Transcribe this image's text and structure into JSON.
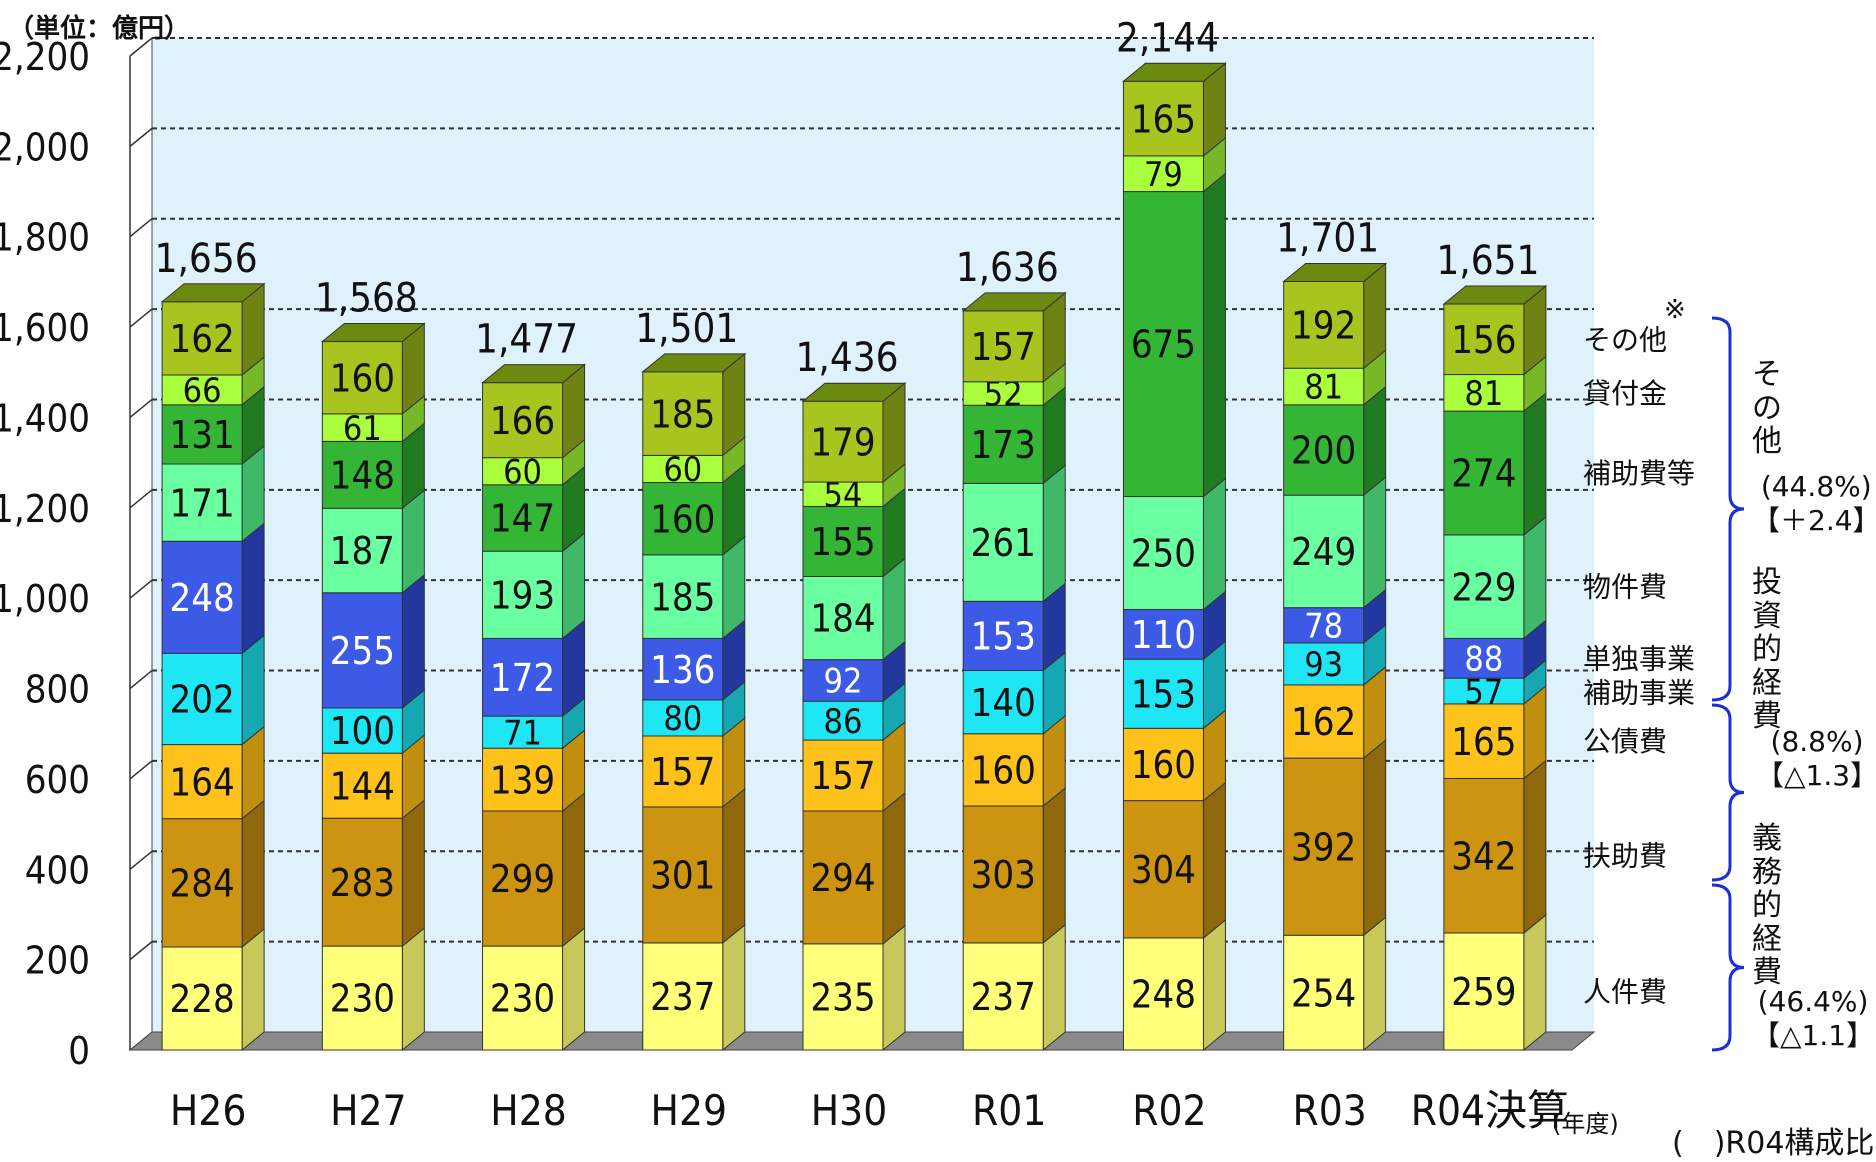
{
  "chart_data": {
    "type": "bar",
    "stacked": true,
    "unit_label": "（単位：億円）",
    "xlabel": "(年度)",
    "ylabel": "",
    "ylim": [
      0,
      2200
    ],
    "yticks": [
      "0",
      "200",
      "400",
      "600",
      "800",
      "1,000",
      "1,200",
      "1,400",
      "1,600",
      "1,800",
      "2,000",
      "2,200"
    ],
    "grid": true,
    "categories": [
      "H26",
      "H27",
      "H28",
      "H29",
      "H30",
      "R01",
      "R02",
      "R03",
      "R04決算"
    ],
    "totals": [
      "1,656",
      "1,568",
      "1,477",
      "1,501",
      "1,436",
      "1,636",
      "2,144",
      "1,701",
      "1,651"
    ],
    "series": [
      {
        "name": "人件費",
        "color": "#ffff7a",
        "side": "#c8c85a",
        "values": [
          228,
          230,
          230,
          237,
          235,
          237,
          248,
          254,
          259
        ]
      },
      {
        "name": "扶助費",
        "color": "#cc9410",
        "side": "#8f680b",
        "values": [
          284,
          283,
          299,
          301,
          294,
          303,
          304,
          392,
          342
        ]
      },
      {
        "name": "公債費",
        "color": "#ffc21a",
        "side": "#c08f10",
        "values": [
          164,
          144,
          139,
          157,
          157,
          160,
          160,
          162,
          165
        ]
      },
      {
        "name": "補助事業",
        "color": "#1fe6f5",
        "side": "#15a8b3",
        "values": [
          202,
          100,
          71,
          80,
          86,
          140,
          153,
          93,
          57
        ]
      },
      {
        "name": "単独事業",
        "color": "#3c5ae6",
        "side": "#22389e",
        "values": [
          248,
          255,
          172,
          136,
          92,
          153,
          110,
          78,
          88
        ]
      },
      {
        "name": "物件費",
        "color": "#6affa0",
        "side": "#40b86a",
        "values": [
          171,
          187,
          193,
          185,
          184,
          261,
          250,
          249,
          229
        ]
      },
      {
        "name": "補助費等",
        "color": "#35b535",
        "side": "#207a20",
        "values": [
          131,
          148,
          147,
          160,
          155,
          173,
          675,
          200,
          274
        ]
      },
      {
        "name": "貸付金",
        "color": "#aaff3c",
        "side": "#76b828",
        "values": [
          66,
          61,
          60,
          60,
          54,
          52,
          79,
          81,
          81
        ]
      },
      {
        "name": "その他",
        "color": "#a8c41e",
        "side": "#6f8214",
        "values": [
          162,
          160,
          166,
          185,
          179,
          157,
          165,
          192,
          156
        ]
      }
    ],
    "groups": [
      {
        "chars": [
          "そ",
          "の",
          "他"
        ],
        "pct": "(44.8%)",
        "change": "【＋2.4】"
      },
      {
        "chars": [
          "投",
          "資",
          "的",
          "経",
          "費"
        ],
        "pct": "(8.8%)",
        "change": "【△1.3】"
      },
      {
        "chars": [
          "義",
          "務",
          "的",
          "経",
          "費"
        ],
        "pct": "(46.4%)",
        "change": "【△1.1】"
      }
    ],
    "asterisk": "※",
    "footnote": "(　)R04構成比"
  }
}
